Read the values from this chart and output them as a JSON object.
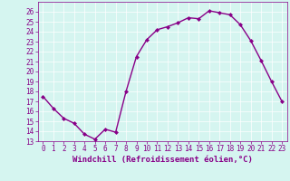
{
  "x": [
    0,
    1,
    2,
    3,
    4,
    5,
    6,
    7,
    8,
    9,
    10,
    11,
    12,
    13,
    14,
    15,
    16,
    17,
    18,
    19,
    20,
    21,
    22,
    23
  ],
  "y": [
    17.5,
    16.3,
    15.3,
    14.8,
    13.7,
    13.2,
    14.2,
    13.9,
    18.0,
    21.5,
    23.2,
    24.2,
    24.5,
    24.9,
    25.4,
    25.3,
    26.1,
    25.9,
    25.7,
    24.7,
    23.1,
    21.1,
    19.0,
    17.0
  ],
  "line_color": "#880088",
  "marker": "D",
  "marker_size": 2.0,
  "bg_color": "#d5f5f0",
  "grid_color": "#ffffff",
  "xlabel": "Windchill (Refroidissement éolien,°C)",
  "ylim": [
    13,
    27
  ],
  "yticks": [
    13,
    14,
    15,
    16,
    17,
    18,
    19,
    20,
    21,
    22,
    23,
    24,
    25,
    26
  ],
  "xticks": [
    0,
    1,
    2,
    3,
    4,
    5,
    6,
    7,
    8,
    9,
    10,
    11,
    12,
    13,
    14,
    15,
    16,
    17,
    18,
    19,
    20,
    21,
    22,
    23
  ],
  "xlim": [
    -0.5,
    23.5
  ],
  "tick_color": "#880088",
  "tick_fontsize": 5.5,
  "xlabel_fontsize": 6.5,
  "line_width": 1.0
}
